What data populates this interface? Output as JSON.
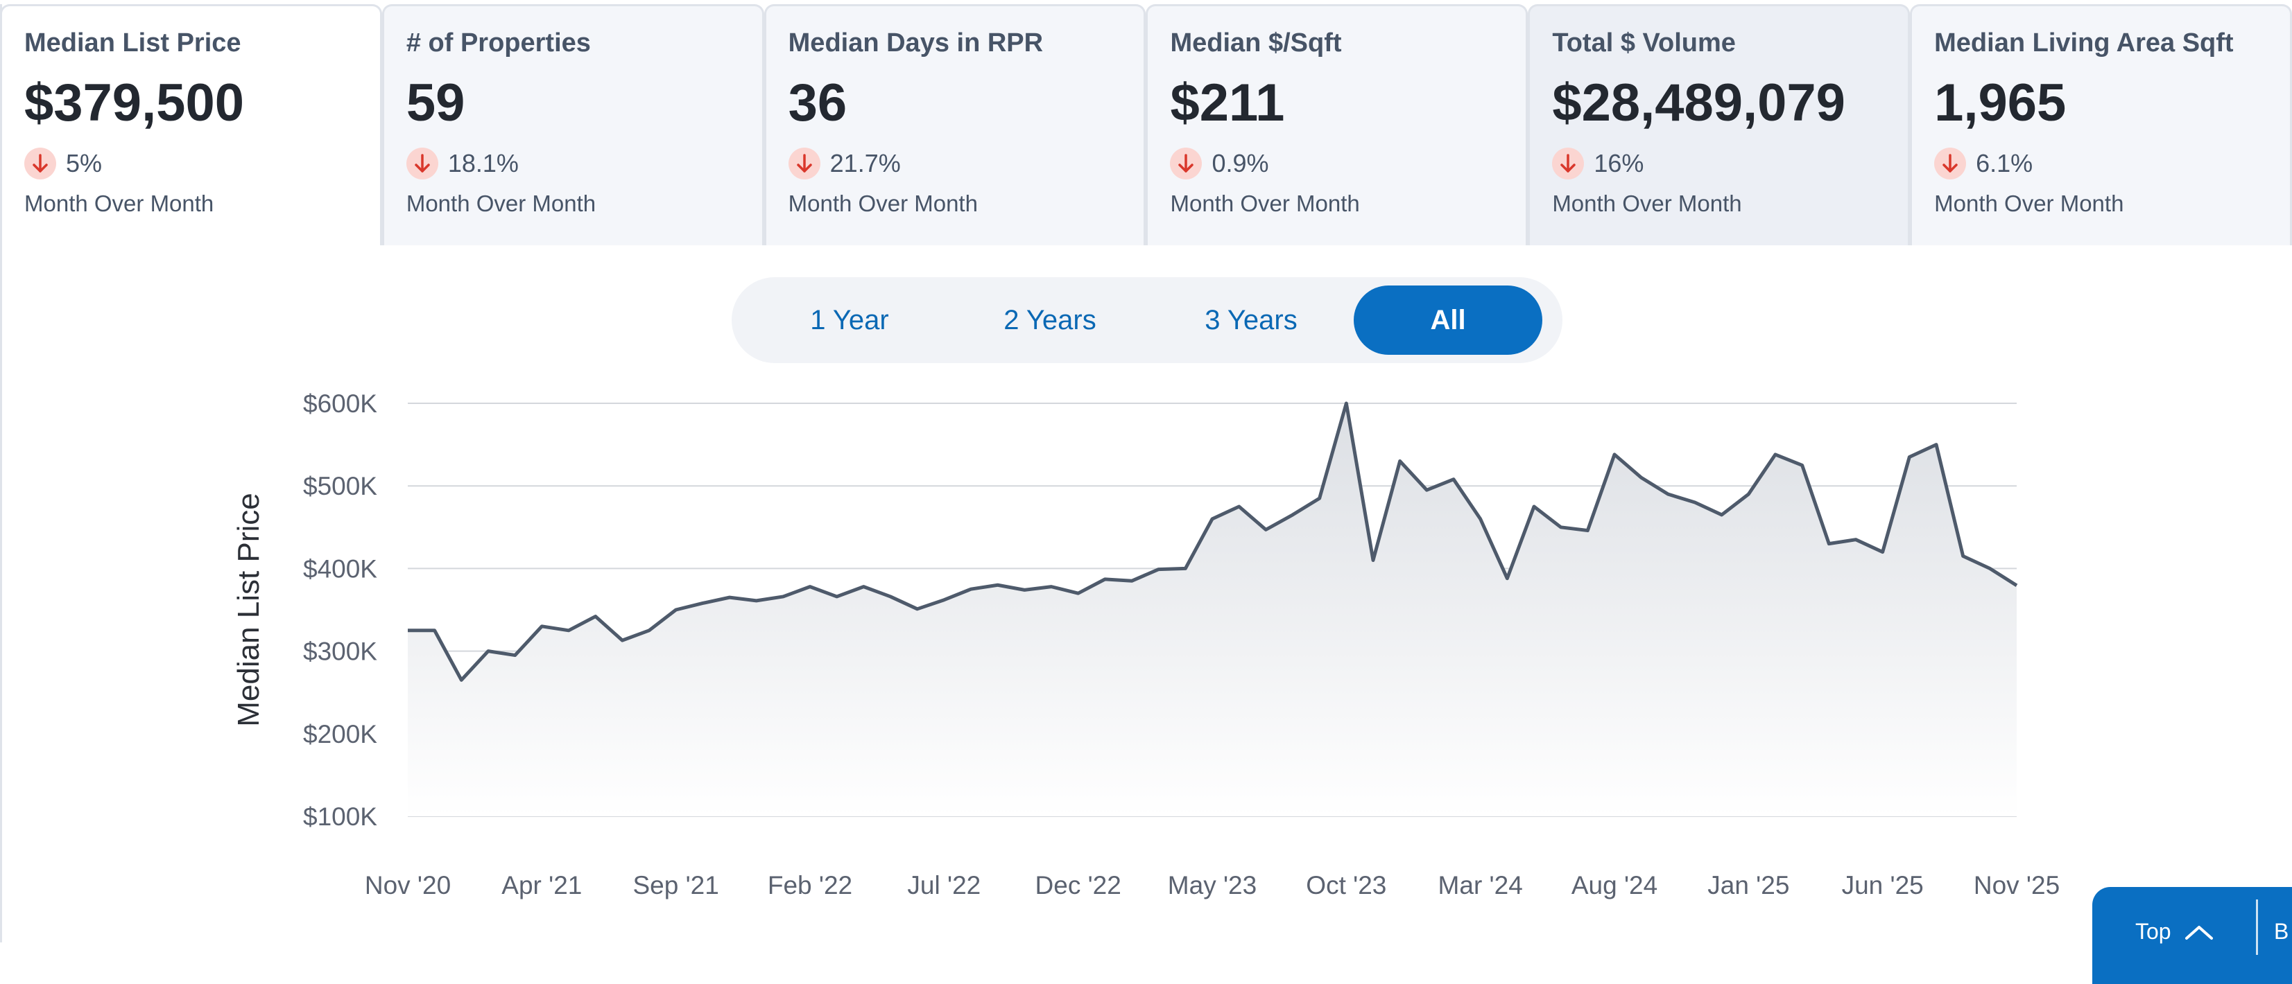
{
  "cards": [
    {
      "title": "Median List Price",
      "value": "$379,500",
      "change": "5%",
      "label": "Month Over Month",
      "state": "active"
    },
    {
      "title": "# of Properties",
      "value": "59",
      "change": "18.1%",
      "label": "Month Over Month",
      "state": ""
    },
    {
      "title": "Median Days in RPR",
      "value": "36",
      "change": "21.7%",
      "label": "Month Over Month",
      "state": ""
    },
    {
      "title": "Median $/Sqft",
      "value": "$211",
      "change": "0.9%",
      "label": "Month Over Month",
      "state": ""
    },
    {
      "title": "Total $ Volume",
      "value": "$28,489,079",
      "change": "16%",
      "label": "Month Over Month",
      "state": "hover"
    },
    {
      "title": "Median Living Area Sqft",
      "value": "1,965",
      "change": "6.1%",
      "label": "Month Over Month",
      "state": ""
    }
  ],
  "range_options": [
    {
      "label": "1 Year",
      "selected": false
    },
    {
      "label": "2 Years",
      "selected": false
    },
    {
      "label": "3 Years",
      "selected": false
    },
    {
      "label": "All",
      "selected": true
    }
  ],
  "chart_data": {
    "type": "area",
    "ylabel": "Median List Price",
    "ylim": [
      100000,
      600000
    ],
    "y_ticks": [
      "$100K",
      "$200K",
      "$300K",
      "$400K",
      "$500K",
      "$600K"
    ],
    "y_tick_values": [
      100000,
      200000,
      300000,
      400000,
      500000,
      600000
    ],
    "x_ticks": [
      "Nov '20",
      "Apr '21",
      "Sep '21",
      "Feb '22",
      "Jul '22",
      "Dec '22",
      "May '23",
      "Oct '23",
      "Mar '24",
      "Aug '24",
      "Jan '25",
      "Jun '25",
      "Nov '25"
    ],
    "x_tick_index": [
      0,
      5,
      10,
      15,
      20,
      25,
      30,
      35,
      40,
      45,
      50,
      55,
      60
    ],
    "grid": true,
    "series": [
      {
        "values": [
          325000,
          325000,
          265000,
          300000,
          295000,
          330000,
          325000,
          342000,
          313000,
          325000,
          350000,
          358000,
          365000,
          361000,
          366000,
          378000,
          366000,
          378000,
          366000,
          351000,
          362000,
          375000,
          380000,
          374000,
          378000,
          370000,
          387000,
          385000,
          399000,
          400000,
          460000,
          475000,
          447000,
          465000,
          485000,
          600000,
          410000,
          530000,
          495000,
          508000,
          460000,
          388000,
          475000,
          450000,
          446000,
          538000,
          510000,
          490000,
          480000,
          465000,
          490000,
          538000,
          525000,
          430000,
          435000,
          420000,
          535000,
          550000,
          415000,
          400000,
          379500
        ]
      }
    ]
  },
  "fab": {
    "top_label": "Top",
    "second_label": "B"
  }
}
